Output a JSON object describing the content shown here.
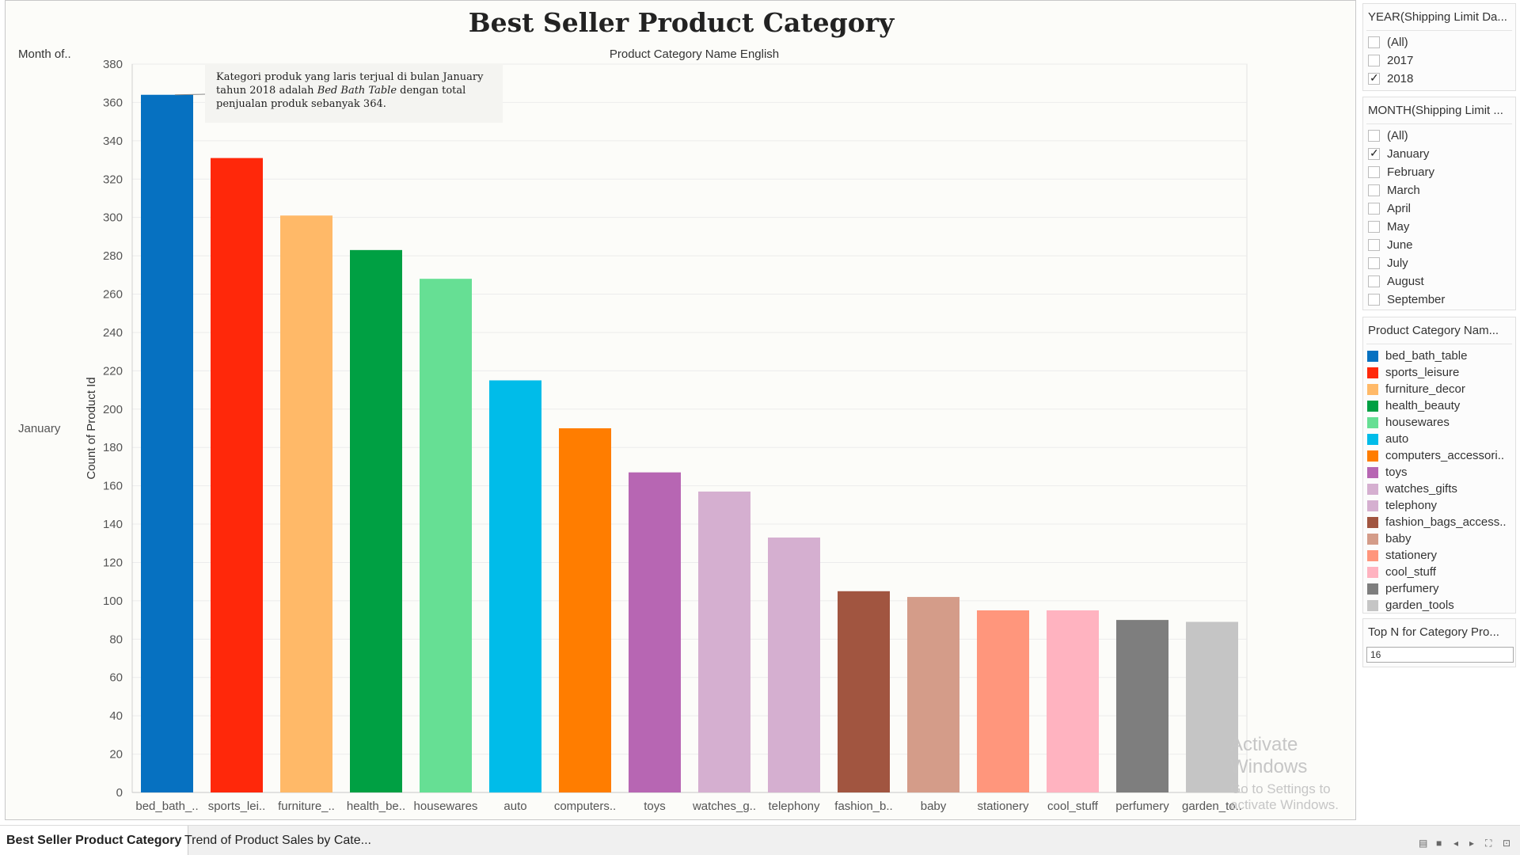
{
  "dashboard": {
    "title": "Best Seller Product Category",
    "row_header": "Month of..",
    "column_header": "Product Category Name English",
    "row_value": "January",
    "tooltip": {
      "text_before": "Kategori produk yang laris terjual di bulan January tahun 2018 adalah ",
      "text_italic": "Bed Bath Table",
      "text_after": " dengan total penjualan produk sebanyak 364."
    },
    "watermark": {
      "line1": "Activate Windows",
      "line2": "Go to Settings to activate Windows."
    }
  },
  "chart_data": {
    "type": "bar",
    "ylabel": "Count of Product Id",
    "ylim": [
      0,
      380
    ],
    "yticks": [
      0,
      20,
      40,
      60,
      80,
      100,
      120,
      140,
      160,
      180,
      200,
      220,
      240,
      260,
      280,
      300,
      320,
      340,
      360,
      380
    ],
    "grid": true,
    "categories": [
      "bed_bath_..",
      "sports_lei..",
      "furniture_..",
      "health_be..",
      "housewares",
      "auto",
      "computers..",
      "toys",
      "watches_g..",
      "telephony",
      "fashion_b..",
      "baby",
      "stationery",
      "cool_stuff",
      "perfumery",
      "garden_to.."
    ],
    "values": [
      364,
      331,
      301,
      283,
      268,
      215,
      190,
      167,
      157,
      133,
      105,
      102,
      95,
      95,
      90,
      89
    ],
    "colors": [
      "#0671c1",
      "#ff280a",
      "#ffb968",
      "#00a043",
      "#66df94",
      "#00bce9",
      "#ff7d00",
      "#b766b3",
      "#d5afd0",
      "#d5afd0",
      "#a15540",
      "#d49c89",
      "#ff967c",
      "#ffb3c0",
      "#7e7e7e",
      "#c5c5c5"
    ]
  },
  "filters": {
    "year": {
      "title": "YEAR(Shipping Limit Da...",
      "options": [
        {
          "label": "(All)",
          "checked": false
        },
        {
          "label": "2017",
          "checked": false
        },
        {
          "label": "2018",
          "checked": true
        }
      ]
    },
    "month": {
      "title": "MONTH(Shipping Limit ...",
      "options": [
        {
          "label": "(All)",
          "checked": false
        },
        {
          "label": "January",
          "checked": true
        },
        {
          "label": "February",
          "checked": false
        },
        {
          "label": "March",
          "checked": false
        },
        {
          "label": "April",
          "checked": false
        },
        {
          "label": "May",
          "checked": false
        },
        {
          "label": "June",
          "checked": false
        },
        {
          "label": "July",
          "checked": false
        },
        {
          "label": "August",
          "checked": false
        },
        {
          "label": "September",
          "checked": false
        }
      ]
    },
    "legend": {
      "title": "Product Category Nam...",
      "items": [
        {
          "label": "bed_bath_table",
          "color": "#0671c1"
        },
        {
          "label": "sports_leisure",
          "color": "#ff280a"
        },
        {
          "label": "furniture_decor",
          "color": "#ffb968"
        },
        {
          "label": "health_beauty",
          "color": "#00a043"
        },
        {
          "label": "housewares",
          "color": "#66df94"
        },
        {
          "label": "auto",
          "color": "#00bce9"
        },
        {
          "label": "computers_accessori..",
          "color": "#ff7d00"
        },
        {
          "label": "toys",
          "color": "#b766b3"
        },
        {
          "label": "watches_gifts",
          "color": "#d5afd0"
        },
        {
          "label": "telephony",
          "color": "#d5afd0"
        },
        {
          "label": "fashion_bags_access..",
          "color": "#a15540"
        },
        {
          "label": "baby",
          "color": "#d49c89"
        },
        {
          "label": "stationery",
          "color": "#ff967c"
        },
        {
          "label": "cool_stuff",
          "color": "#ffb3c0"
        },
        {
          "label": "perfumery",
          "color": "#7e7e7e"
        },
        {
          "label": "garden_tools",
          "color": "#c5c5c5"
        }
      ]
    },
    "topn": {
      "title": "Top N for Category Pro...",
      "value": "16"
    }
  },
  "tabs": [
    {
      "label": "Best Seller Product Category"
    },
    {
      "label": "Trend of Product Sales by Cate..."
    }
  ]
}
